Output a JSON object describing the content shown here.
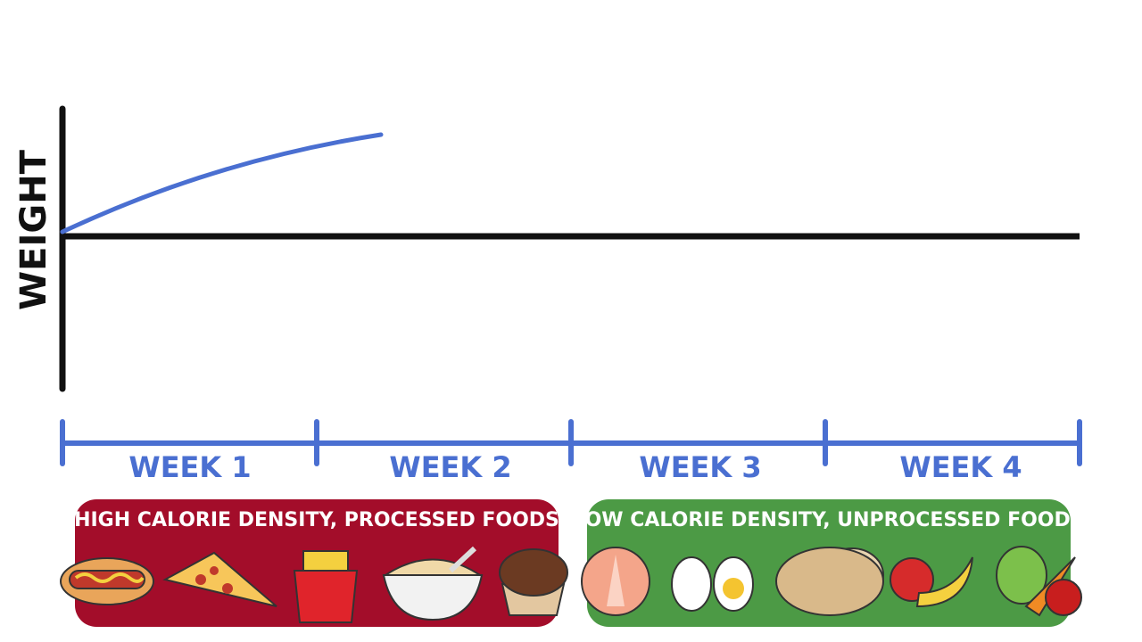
{
  "y_axis_label": "WEIGHT",
  "weeks": [
    "WEEK 1",
    "WEEK 2",
    "WEEK 3",
    "WEEK 4"
  ],
  "panels": {
    "high": "HIGH CALORIE DENSITY, PROCESSED FOODS",
    "low": "LOW CALORIE DENSITY, UNPROCESSED FOODS"
  }
}
